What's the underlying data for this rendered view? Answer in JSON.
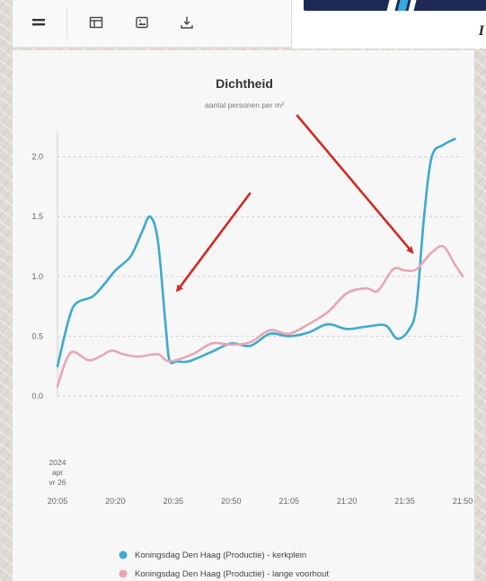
{
  "toolbar": {
    "icons": [
      "menu-icon",
      "layout-icon",
      "image-icon",
      "download-icon"
    ]
  },
  "banner": {
    "mark": "I"
  },
  "chart_data": {
    "type": "line",
    "title": "Dichtheid",
    "subtitle": "aantal personen per m²",
    "ylim": [
      0,
      2.2
    ],
    "y_ticks": [
      "0.0",
      "0.5",
      "1.0",
      "1.5",
      "2.0"
    ],
    "x_tick_labels": [
      "20:05",
      "20:20",
      "20:35",
      "20:50",
      "21:05",
      "21:20",
      "21:35",
      "21:50"
    ],
    "x_date_label": [
      "2024",
      "apr",
      "vr 26"
    ],
    "grid": "horizontal dashed",
    "legend_position": "bottom",
    "series": [
      {
        "name": "Koningsdag Den Haag (Productie) - kerkplein",
        "color": "#3fa9cf",
        "points": [
          [
            "20:05",
            0.25
          ],
          [
            "20:08",
            0.65
          ],
          [
            "20:10",
            0.78
          ],
          [
            "20:14",
            0.83
          ],
          [
            "20:17",
            0.93
          ],
          [
            "20:20",
            1.05
          ],
          [
            "20:24",
            1.17
          ],
          [
            "20:27",
            1.38
          ],
          [
            "20:29",
            1.5
          ],
          [
            "20:31",
            1.3
          ],
          [
            "20:33",
            0.6
          ],
          [
            "20:34",
            0.3
          ],
          [
            "20:36",
            0.29
          ],
          [
            "20:39",
            0.29
          ],
          [
            "20:45",
            0.37
          ],
          [
            "20:50",
            0.44
          ],
          [
            "20:55",
            0.42
          ],
          [
            "21:00",
            0.52
          ],
          [
            "21:05",
            0.5
          ],
          [
            "21:10",
            0.53
          ],
          [
            "21:15",
            0.6
          ],
          [
            "21:20",
            0.56
          ],
          [
            "21:25",
            0.58
          ],
          [
            "21:30",
            0.59
          ],
          [
            "21:33",
            0.48
          ],
          [
            "21:36",
            0.55
          ],
          [
            "21:38",
            0.75
          ],
          [
            "21:40",
            1.5
          ],
          [
            "21:42",
            2.0
          ],
          [
            "21:45",
            2.1
          ],
          [
            "21:48",
            2.15
          ]
        ]
      },
      {
        "name": "Koningsdag Den Haag (Productie) - lange voorhout",
        "color": "#e8a6b4",
        "points": [
          [
            "20:05",
            0.08
          ],
          [
            "20:07",
            0.28
          ],
          [
            "20:09",
            0.37
          ],
          [
            "20:13",
            0.3
          ],
          [
            "20:16",
            0.33
          ],
          [
            "20:19",
            0.38
          ],
          [
            "20:22",
            0.35
          ],
          [
            "20:26",
            0.33
          ],
          [
            "20:31",
            0.35
          ],
          [
            "20:34",
            0.29
          ],
          [
            "20:40",
            0.35
          ],
          [
            "20:45",
            0.44
          ],
          [
            "20:50",
            0.43
          ],
          [
            "20:55",
            0.45
          ],
          [
            "21:00",
            0.55
          ],
          [
            "21:05",
            0.52
          ],
          [
            "21:10",
            0.6
          ],
          [
            "21:15",
            0.7
          ],
          [
            "21:20",
            0.86
          ],
          [
            "21:25",
            0.9
          ],
          [
            "21:28",
            0.88
          ],
          [
            "21:32",
            1.06
          ],
          [
            "21:35",
            1.05
          ],
          [
            "21:38",
            1.06
          ],
          [
            "21:42",
            1.2
          ],
          [
            "21:45",
            1.25
          ],
          [
            "21:48",
            1.1
          ],
          [
            "21:50",
            1.0
          ]
        ]
      }
    ],
    "annotations": [
      {
        "type": "arrow",
        "color": "#d42a22",
        "from": [
          "20:55",
          1.7
        ],
        "to": [
          "20:36",
          0.88
        ]
      },
      {
        "type": "arrow",
        "color": "#d42a22",
        "from": [
          "21:07",
          2.35
        ],
        "to": [
          "21:37",
          1.2
        ]
      }
    ]
  }
}
